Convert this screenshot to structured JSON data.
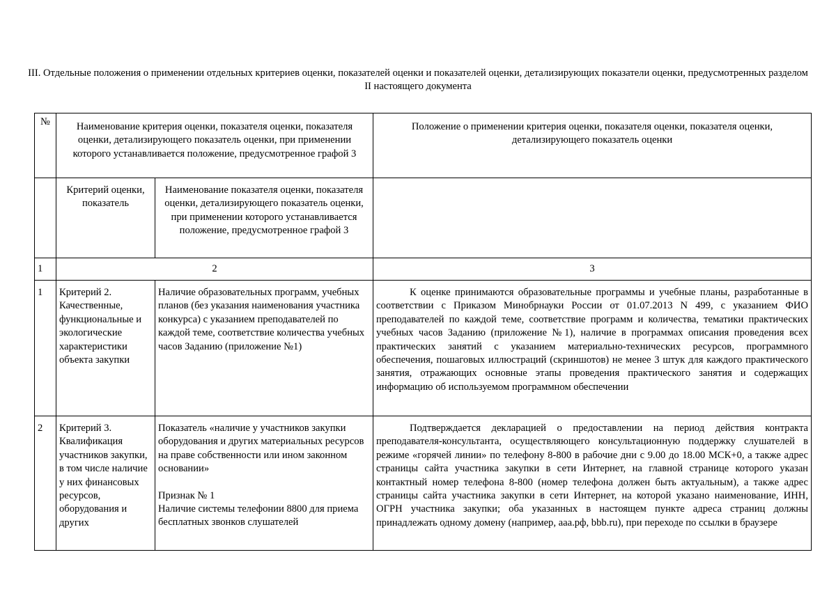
{
  "section_title": "III. Отдельные положения о применении отдельных критериев оценки, показателей оценки и показателей оценки, детализирующих показатели оценки, предусмотренных разделом II настоящего документа",
  "table": {
    "header": {
      "num": "№",
      "name": "Наименование критерия оценки, показателя оценки, показателя оценки, детализирующего показатель оценки, при применении которого устанавливается положение, предусмотренное графой 3",
      "position": "Положение о применении критерия оценки, показателя оценки, показателя оценки, детализирующего показатель оценки",
      "sub_criterion": "Критерий оценки, показатель",
      "sub_indicator": "Наименование показателя оценки, показателя оценки, детализирующего показатель оценки, при применении которого устанавливается положение, предусмотренное графой 3"
    },
    "column_numbers": [
      "1",
      "2",
      "3"
    ],
    "rows": [
      {
        "num": "1",
        "criterion": "Критерий 2. Качественные, функциональные и экологические характеристики объекта закупки",
        "indicator": "Наличие образовательных программ, учебных планов (без указания наименования участника конкурса) с указанием преподавателей по каждой теме, соответствие количества учебных часов Заданию (приложение №1)",
        "indicator_extra": [],
        "position": "К оценке принимаются образовательные программы и учебные планы, разработанные в соответствии с Приказом Минобрнауки России от 01.07.2013 N 499, с указанием ФИО преподавателей по каждой теме, соответствие программ и количества, тематики практических учебных часов Заданию (приложение №1), наличие в программах описания проведения всех практических занятий с указанием материально-технических ресурсов, программного обеспечения, пошаговых иллюстраций (скриншотов) не менее 3 штук для каждого практического занятия, отражающих основные этапы проведения практического занятия и содержащих информацию об используемом программном обеспечении"
      },
      {
        "num": "2",
        "criterion": "Критерий 3. Квалификация участников закупки, в том числе наличие у них финансовых ресурсов, оборудования и других",
        "indicator": "Показатель «наличие у участников закупки оборудования и других материальных ресурсов на праве собственности или ином законном основании»",
        "sign_label": "Признак № 1",
        "sign_text": "Наличие системы телефонии 8800 для приема бесплатных звонков слушателей",
        "position": "Подтверждается декларацией о предоставлении на период действия контракта преподавателя-консультанта, осуществляющего консультационную поддержку слушателей в режиме «горячей линии» по телефону 8-800 в рабочие дни с 9.00 до 18.00 МСК+0, а также адрес страницы сайта участника закупки в сети Интернет, на главной странице которого указан контактный номер телефона 8-800 (номер телефона должен быть актуальным), а также адрес страницы сайта участника закупки в сети Интернет, на которой указано наименование, ИНН, ОГРН участника закупки; оба указанных в настоящем пункте адреса страниц должны принадлежать одному домену (например, ааа.рф, bbb.ru), при переходе по  ссылки в браузере"
      }
    ]
  }
}
